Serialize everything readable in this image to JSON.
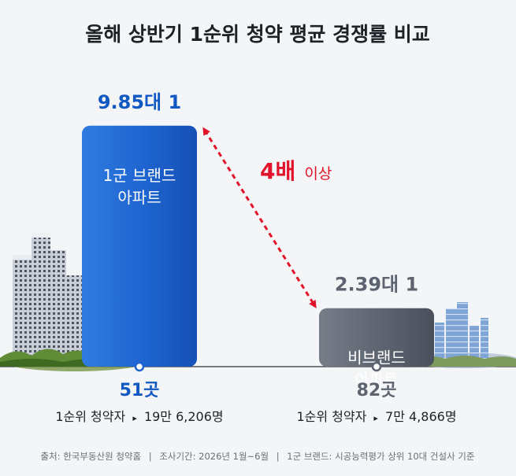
{
  "title": "올해 상반기 1순위 청약 평균 경쟁률 비교",
  "colors": {
    "background": "#f4f5f7",
    "brand_bar": "#1e64cf",
    "nonbrand_bar": "#5d6470",
    "brand_value_text": "#1258c2",
    "nonbrand_value_text": "#5d6470",
    "highlight": "#e0132b"
  },
  "chart_data": {
    "type": "bar",
    "title": "올해 상반기 1순위 청약 평균 경쟁률 비교",
    "categories": [
      "1군 브랜드 아파트",
      "비브랜드 아파트"
    ],
    "series": [
      {
        "values": [
          9.85,
          2.39
        ],
        "value_labels": [
          "9.85대 1",
          "2.39대 1"
        ]
      }
    ],
    "ylim": [
      0,
      11
    ],
    "grid": false,
    "legend": "none",
    "bars": [
      {
        "label_line1": "1군 브랜드",
        "label_line2": "아파트",
        "value": 9.85,
        "value_label": "9.85대 1",
        "count_label": "51곳",
        "applicants_label": "1순위 청약자",
        "applicants_value": "19만 6,206명"
      },
      {
        "label_line1": "비브랜드",
        "label_line2": "아파트",
        "value": 2.39,
        "value_label": "2.39대 1",
        "count_label": "82곳",
        "applicants_label": "1순위 청약자",
        "applicants_value": "7만 4,866명"
      }
    ],
    "annotation": {
      "strong": "4배",
      "weak": "이상"
    }
  },
  "footer": {
    "source": "출처: 한국부동산원 청약홈",
    "period": "조사기간: 2026년 1월~6월",
    "definition": "1군 브랜드: 시공능력평가 상위 10대 건설사 기준"
  }
}
